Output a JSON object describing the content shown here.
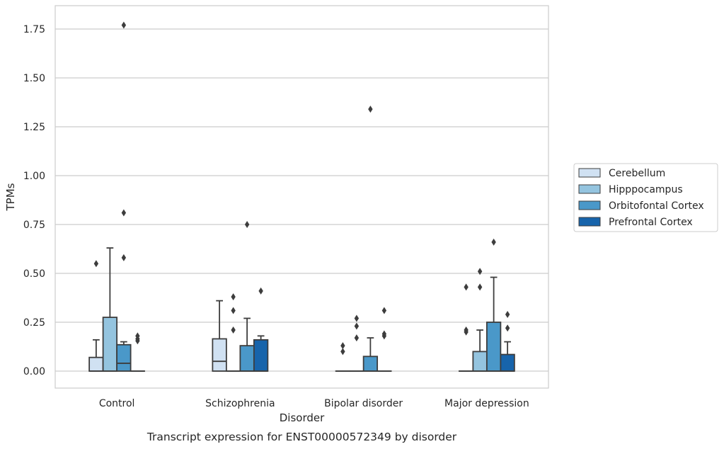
{
  "chart_data": {
    "type": "box",
    "caption": "Transcript expression for ENST00000572349 by disorder",
    "xlabel": "Disorder",
    "ylabel": "TPMs",
    "ylim": [
      -0.085,
      1.86
    ],
    "yticks": [
      "0.00",
      "0.25",
      "0.50",
      "0.75",
      "1.00",
      "1.25",
      "1.50",
      "1.75"
    ],
    "grid": true,
    "legend_position": "right",
    "categories": [
      "Control",
      "Schizophrenia",
      "Bipolar disorder",
      "Major depression"
    ],
    "series": [
      {
        "name": "Cerebellum",
        "color": "#d0e1f2",
        "boxes": [
          {
            "whislo": 0,
            "q1": 0,
            "med": 0,
            "q3": 0.07,
            "whishi": 0.16,
            "fliers": [
              0.55
            ]
          },
          {
            "whislo": 0,
            "q1": 0,
            "med": 0.05,
            "q3": 0.165,
            "whishi": 0.36,
            "fliers": []
          },
          {
            "whislo": 0,
            "q1": 0,
            "med": 0,
            "q3": 0,
            "whishi": 0,
            "fliers": [
              0.1,
              0.13
            ]
          },
          {
            "whislo": 0,
            "q1": 0,
            "med": 0,
            "q3": 0,
            "whishi": 0,
            "fliers": [
              0.2,
              0.21,
              0.43
            ]
          }
        ]
      },
      {
        "name": "Hipppocampus",
        "color": "#94c4df",
        "boxes": [
          {
            "whislo": 0,
            "q1": 0,
            "med": 0,
            "q3": 0.275,
            "whishi": 0.63,
            "fliers": []
          },
          {
            "whislo": 0,
            "q1": 0,
            "med": 0,
            "q3": 0,
            "whishi": 0,
            "fliers": [
              0.21,
              0.31,
              0.38
            ]
          },
          {
            "whislo": 0,
            "q1": 0,
            "med": 0,
            "q3": 0,
            "whishi": 0,
            "fliers": [
              0.17,
              0.23,
              0.27
            ]
          },
          {
            "whislo": 0,
            "q1": 0,
            "med": 0,
            "q3": 0.1,
            "whishi": 0.21,
            "fliers": [
              0.43,
              0.51
            ]
          }
        ]
      },
      {
        "name": "Orbitofontal Cortex",
        "color": "#4a98c9",
        "boxes": [
          {
            "whislo": 0,
            "q1": 0,
            "med": 0.04,
            "q3": 0.135,
            "whishi": 0.15,
            "fliers": [
              0.58,
              0.81,
              1.77
            ]
          },
          {
            "whislo": 0,
            "q1": 0,
            "med": 0,
            "q3": 0.13,
            "whishi": 0.27,
            "fliers": [
              0.75
            ]
          },
          {
            "whislo": 0,
            "q1": 0,
            "med": 0,
            "q3": 0.075,
            "whishi": 0.17,
            "fliers": [
              1.34
            ]
          },
          {
            "whislo": 0,
            "q1": 0,
            "med": 0,
            "q3": 0.25,
            "whishi": 0.48,
            "fliers": [
              0.66
            ]
          }
        ]
      },
      {
        "name": "Prefrontal Cortex",
        "color": "#1764ab",
        "boxes": [
          {
            "whislo": 0,
            "q1": 0,
            "med": 0,
            "q3": 0,
            "whishi": 0,
            "fliers": [
              0.155,
              0.165,
              0.18
            ]
          },
          {
            "whislo": 0,
            "q1": 0,
            "med": 0,
            "q3": 0.16,
            "whishi": 0.18,
            "fliers": [
              0.41
            ]
          },
          {
            "whislo": 0,
            "q1": 0,
            "med": 0,
            "q3": 0,
            "whishi": 0,
            "fliers": [
              0.18,
              0.19,
              0.31
            ]
          },
          {
            "whislo": 0,
            "q1": 0,
            "med": 0,
            "q3": 0.085,
            "whishi": 0.15,
            "fliers": [
              0.22,
              0.29
            ]
          }
        ]
      }
    ]
  }
}
